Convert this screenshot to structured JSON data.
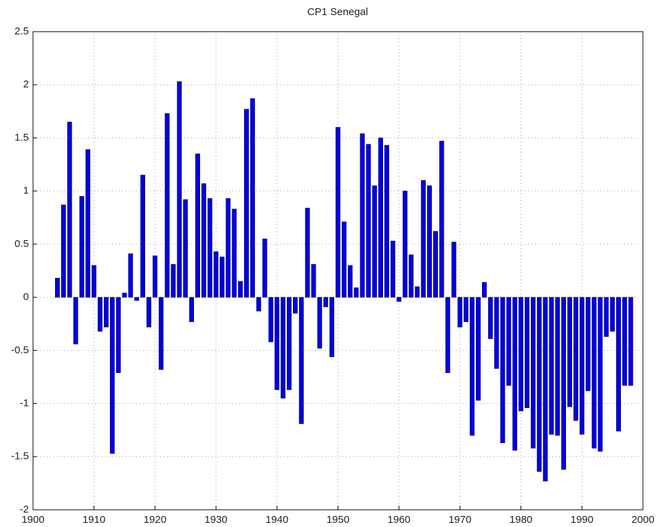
{
  "chart_data": {
    "type": "bar",
    "title": "CP1 Senegal",
    "x": [
      1904,
      1905,
      1906,
      1907,
      1908,
      1909,
      1910,
      1911,
      1912,
      1913,
      1914,
      1915,
      1916,
      1917,
      1918,
      1919,
      1920,
      1921,
      1922,
      1923,
      1924,
      1925,
      1926,
      1927,
      1928,
      1929,
      1930,
      1931,
      1932,
      1933,
      1934,
      1935,
      1936,
      1937,
      1938,
      1939,
      1940,
      1941,
      1942,
      1943,
      1944,
      1945,
      1946,
      1947,
      1948,
      1949,
      1950,
      1951,
      1952,
      1953,
      1954,
      1955,
      1956,
      1957,
      1958,
      1959,
      1960,
      1961,
      1962,
      1963,
      1964,
      1965,
      1966,
      1967,
      1968,
      1969,
      1970,
      1971,
      1972,
      1973,
      1974,
      1975,
      1976,
      1977,
      1978,
      1979,
      1980,
      1981,
      1982,
      1983,
      1984,
      1985,
      1986,
      1987,
      1988,
      1989,
      1990,
      1991,
      1992,
      1993,
      1994,
      1995,
      1996,
      1997,
      1998
    ],
    "values": [
      0.18,
      0.87,
      1.65,
      -0.44,
      0.95,
      1.39,
      0.3,
      -0.32,
      -0.28,
      -1.47,
      -0.71,
      0.04,
      0.41,
      -0.03,
      1.15,
      -0.28,
      0.39,
      -0.68,
      1.73,
      0.31,
      2.03,
      0.92,
      -0.23,
      1.35,
      1.07,
      0.93,
      0.43,
      0.38,
      0.93,
      0.83,
      0.15,
      1.77,
      1.87,
      -0.13,
      0.55,
      -0.42,
      -0.87,
      -0.95,
      -0.87,
      -0.15,
      -1.19,
      0.84,
      0.31,
      -0.48,
      -0.09,
      -0.56,
      1.6,
      0.71,
      0.3,
      0.09,
      1.54,
      1.44,
      1.05,
      1.5,
      1.43,
      0.53,
      -0.04,
      1.0,
      0.4,
      0.1,
      1.1,
      1.05,
      0.62,
      1.47,
      -0.71,
      0.52,
      -0.28,
      -0.23,
      -1.3,
      -0.97,
      0.14,
      -0.39,
      -0.67,
      -1.37,
      -0.83,
      -1.44,
      -1.07,
      -1.04,
      -1.42,
      -1.64,
      -1.73,
      -1.29,
      -1.3,
      -1.62,
      -1.03,
      -1.16,
      -1.29,
      -0.88,
      -1.42,
      -1.45,
      -0.37,
      -0.32,
      -1.26,
      -0.83,
      -0.83
    ],
    "color": "#0000e6",
    "xlim": [
      1900,
      2000
    ],
    "xticks": [
      1900,
      1910,
      1920,
      1930,
      1940,
      1950,
      1960,
      1970,
      1980,
      1990,
      2000
    ],
    "ylim": [
      -2,
      2.5
    ],
    "yticks": [
      -2,
      -1.5,
      -1,
      -0.5,
      0,
      0.5,
      1,
      1.5,
      2,
      2.5
    ],
    "grid": true
  }
}
